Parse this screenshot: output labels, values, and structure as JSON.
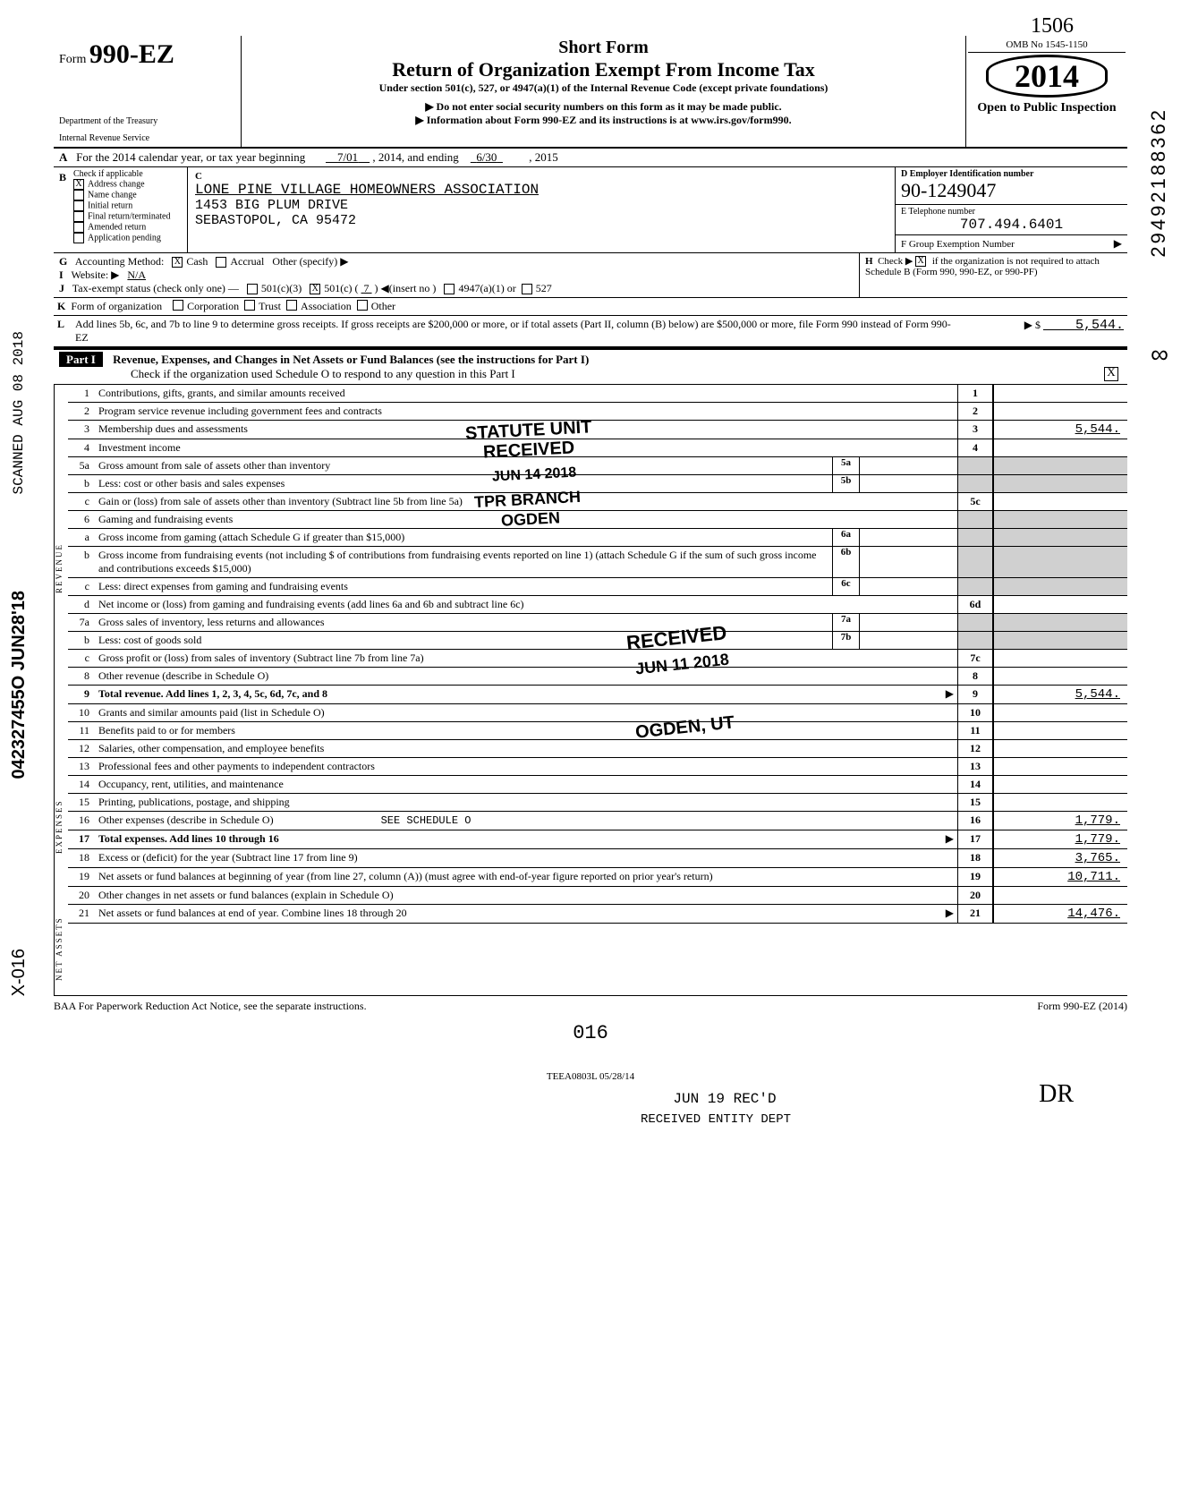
{
  "form": {
    "number_prefix": "Form",
    "number": "990-EZ",
    "title_short": "Short Form",
    "title_main": "Return of Organization Exempt From Income Tax",
    "subtitle": "Under section 501(c), 527, or 4947(a)(1) of the Internal Revenue Code (except private foundations)",
    "ssn_note": "▶ Do not enter social security numbers on this form as it may be made public.",
    "info_note": "▶ Information about Form 990-EZ and its instructions is at www.irs.gov/form990.",
    "dept1": "Department of the Treasury",
    "dept2": "Internal Revenue Service",
    "omb": "OMB No  1545-1150",
    "year": "2014",
    "open_public": "Open to Public Inspection",
    "handwritten_top": "1506"
  },
  "period": {
    "line_a": "For the 2014 calendar year, or tax year beginning",
    "begin": "7/01",
    "mid": ", 2014, and ending",
    "end": "6/30",
    "end_year": ", 2015"
  },
  "check_b": {
    "header": "Check if applicable",
    "items": [
      {
        "label": "Address change",
        "checked": "X"
      },
      {
        "label": "Name change",
        "checked": ""
      },
      {
        "label": "Initial return",
        "checked": ""
      },
      {
        "label": "Final return/terminated",
        "checked": ""
      },
      {
        "label": "Amended return",
        "checked": ""
      },
      {
        "label": "Application pending",
        "checked": ""
      }
    ]
  },
  "org": {
    "c_label": "C",
    "name": "LONE PINE VILLAGE HOMEOWNERS ASSOCIATION",
    "addr1": "1453 BIG PLUM DRIVE",
    "addr2": "SEBASTOPOL, CA 95472"
  },
  "right_block": {
    "d_label": "D  Employer Identification number",
    "ein": "90-1249047",
    "e_label": "E   Telephone number",
    "phone": "707.494.6401",
    "f_label": "F  Group Exemption Number",
    "f_arrow": "▶"
  },
  "rows": {
    "g": {
      "label": "G",
      "text": "Accounting Method:",
      "cash_x": "X",
      "cash": "Cash",
      "accrual": "Accrual",
      "other": "Other (specify) ▶"
    },
    "i": {
      "label": "I",
      "text": "Website: ▶",
      "value": "N/A"
    },
    "j": {
      "label": "J",
      "text": "Tax-exempt status (check only one) —",
      "c3": "501(c)(3)",
      "c": "501(c) (",
      "c_num": "7",
      "c_after": ")  ◀(insert no )",
      "c_x": "X",
      "a4947": "4947(a)(1) or",
      "s527": "527"
    },
    "k": {
      "label": "K",
      "text": "Form of organization",
      "corp": "Corporation",
      "trust": "Trust",
      "assoc": "Association",
      "other": "Other"
    },
    "h": {
      "label": "H",
      "text1": "Check ▶",
      "x": "X",
      "text2": "if the organization is not required to attach Schedule B (Form 990, 990-EZ, or 990-PF)"
    },
    "l": {
      "label": "L",
      "text": "Add lines 5b, 6c, and 7b to line 9 to determine gross receipts. If gross receipts are $200,000 or more, or if total assets (Part II, column (B) below) are $500,000 or more, file Form 990 instead of Form 990-EZ",
      "arrow": "▶ $",
      "amount": "5,544."
    }
  },
  "part1": {
    "label": "Part I",
    "title": "Revenue, Expenses, and Changes in Net Assets or Fund Balances (see the instructions for Part I)",
    "check_text": "Check if the organization used Schedule O to respond to any question in this Part I",
    "check_x": "X"
  },
  "side_labels": {
    "revenue": "REVENUE",
    "expenses": "EXPENSES",
    "assets": "NET ASSETS"
  },
  "lines": [
    {
      "n": "1",
      "desc": "Contributions, gifts, grants, and similar amounts received",
      "box": "1",
      "val": ""
    },
    {
      "n": "2",
      "desc": "Program service revenue including government fees and contracts",
      "box": "2",
      "val": ""
    },
    {
      "n": "3",
      "desc": "Membership dues and assessments",
      "box": "3",
      "val": "5,544."
    },
    {
      "n": "4",
      "desc": "Investment income",
      "box": "4",
      "val": ""
    },
    {
      "n": "5a",
      "desc": "Gross amount from sale of assets other than inventory",
      "sub_box": "5a",
      "sub_val": ""
    },
    {
      "n": "b",
      "desc": "Less: cost or other basis and sales expenses",
      "sub_box": "5b",
      "sub_val": ""
    },
    {
      "n": "c",
      "desc": "Gain or (loss) from sale of assets other than inventory (Subtract line 5b from line 5a)",
      "box": "5c",
      "val": ""
    },
    {
      "n": "6",
      "desc": "Gaming and fundraising events"
    },
    {
      "n": "a",
      "desc": "Gross income from gaming (attach Schedule G if greater than $15,000)",
      "sub_box": "6a",
      "sub_val": ""
    },
    {
      "n": "b",
      "desc": "Gross income from fundraising events (not including $                  of contributions from fundraising events reported on line 1) (attach Schedule G if the sum of such gross income and contributions exceeds $15,000)",
      "sub_box": "6b",
      "sub_val": ""
    },
    {
      "n": "c",
      "desc": "Less: direct expenses from gaming and fundraising events",
      "sub_box": "6c",
      "sub_val": ""
    },
    {
      "n": "d",
      "desc": "Net income or (loss) from gaming and fundraising events (add lines 6a and 6b and subtract line 6c)",
      "box": "6d",
      "val": ""
    },
    {
      "n": "7a",
      "desc": "Gross sales of inventory, less returns and allowances",
      "sub_box": "7a",
      "sub_val": ""
    },
    {
      "n": "b",
      "desc": "Less: cost of goods sold",
      "sub_box": "7b",
      "sub_val": ""
    },
    {
      "n": "c",
      "desc": "Gross profit or (loss) from sales of inventory (Subtract line 7b from line 7a)",
      "box": "7c",
      "val": ""
    },
    {
      "n": "8",
      "desc": "Other revenue (describe in Schedule O)",
      "box": "8",
      "val": ""
    },
    {
      "n": "9",
      "desc": "Total revenue. Add lines 1, 2, 3, 4, 5c, 6d, 7c, and 8",
      "box": "9",
      "val": "5,544.",
      "bold": true,
      "arrow": "▶"
    },
    {
      "n": "10",
      "desc": "Grants and similar amounts paid (list in Schedule O)",
      "box": "10",
      "val": ""
    },
    {
      "n": "11",
      "desc": "Benefits paid to or for members",
      "box": "11",
      "val": ""
    },
    {
      "n": "12",
      "desc": "Salaries, other compensation, and employee benefits",
      "box": "12",
      "val": ""
    },
    {
      "n": "13",
      "desc": "Professional fees and other payments to independent contractors",
      "box": "13",
      "val": ""
    },
    {
      "n": "14",
      "desc": "Occupancy, rent, utilities, and maintenance",
      "box": "14",
      "val": ""
    },
    {
      "n": "15",
      "desc": "Printing, publications, postage, and shipping",
      "box": "15",
      "val": ""
    },
    {
      "n": "16",
      "desc": "Other expenses (describe in Schedule O)",
      "extra": "SEE SCHEDULE O",
      "box": "16",
      "val": "1,779."
    },
    {
      "n": "17",
      "desc": "Total expenses. Add lines 10 through 16",
      "box": "17",
      "val": "1,779.",
      "bold": true,
      "arrow": "▶"
    },
    {
      "n": "18",
      "desc": "Excess or (deficit) for the year (Subtract line 17 from line 9)",
      "box": "18",
      "val": "3,765."
    },
    {
      "n": "19",
      "desc": "Net assets or fund balances at beginning of year (from line 27, column (A)) (must agree with end-of-year figure reported on prior year's return)",
      "box": "19",
      "val": "10,711."
    },
    {
      "n": "20",
      "desc": "Other changes in net assets or fund balances (explain in Schedule O)",
      "box": "20",
      "val": ""
    },
    {
      "n": "21",
      "desc": "Net assets or fund balances at end of year. Combine lines 18 through 20",
      "box": "21",
      "val": "14,476.",
      "arrow": "▶"
    }
  ],
  "stamps": {
    "statute": "STATUTE UNIT",
    "received1": "RECEIVED",
    "date1": "JUN 14 2018",
    "branch": "TPR BRANCH",
    "ogden1": "OGDEN",
    "received2": "RECEIVED",
    "date2": "JUN 11 2018",
    "ogden2": "OGDEN, UT",
    "bottom_date": "JUN 19 REC'D",
    "bottom_rec": "RECEIVED ENTITY DEPT"
  },
  "footer": {
    "baa": "BAA  For Paperwork Reduction Act Notice, see the separate instructions.",
    "code": "TEEA0803L   05/28/14",
    "form": "Form 990-EZ (2014)",
    "page_num": "016"
  },
  "margin": {
    "left_num": "042327455O JUN28'18",
    "left_scan": "SCANNED AUG 08 2018",
    "right_num": "29492188362",
    "right_inf": "∞",
    "bottom_left": "X-016",
    "bottom_right_init": "DR"
  }
}
